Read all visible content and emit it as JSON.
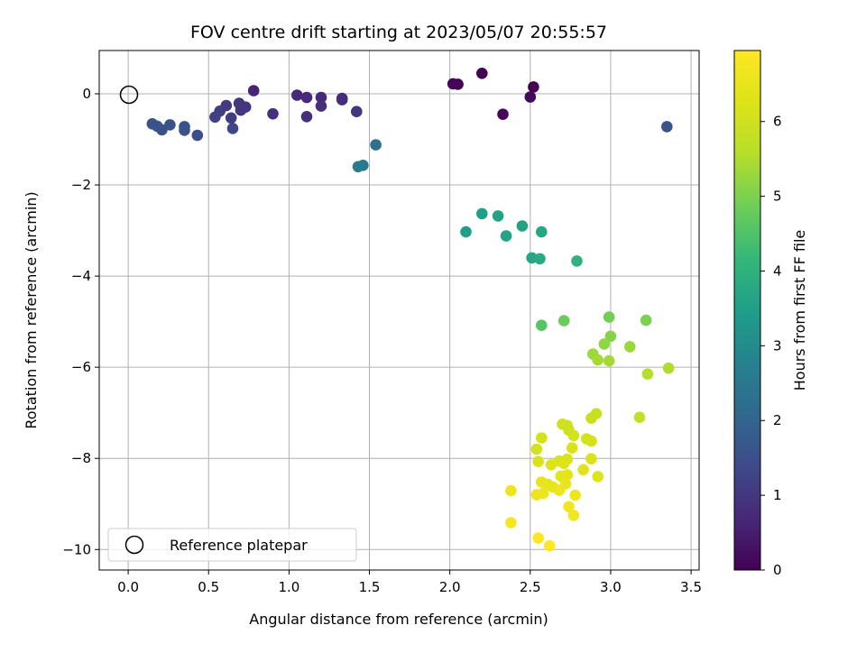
{
  "chart_data": {
    "type": "scatter",
    "title": "FOV centre drift starting at 2023/05/07 20:55:57",
    "xlabel": "Angular distance from reference (arcmin)",
    "ylabel": "Rotation from reference (arcmin)",
    "xlim": [
      -0.18,
      3.55
    ],
    "ylim": [
      -10.45,
      0.95
    ],
    "x_ticks": [
      "0.0",
      "0.5",
      "1.0",
      "1.5",
      "2.0",
      "2.5",
      "3.0",
      "3.5"
    ],
    "x_tick_values": [
      0,
      0.5,
      1.0,
      1.5,
      2.0,
      2.5,
      3.0,
      3.5
    ],
    "y_ticks": [
      "0",
      "−2",
      "−4",
      "−6",
      "−8",
      "−10"
    ],
    "y_tick_values": [
      0,
      -2,
      -4,
      -6,
      -8,
      -10
    ],
    "grid": true,
    "legend": {
      "placement": "lower-left",
      "label": "Reference platepar",
      "marker": "open-circle"
    },
    "reference_point": {
      "x": 0.0,
      "y": 0.0
    },
    "colormap": "viridis",
    "colorbar": {
      "label": "Hours from first FF file",
      "range": [
        0,
        6.95
      ],
      "ticks": [
        "0",
        "1",
        "2",
        "3",
        "4",
        "5",
        "6"
      ],
      "tick_values": [
        0,
        1,
        2,
        3,
        4,
        5,
        6
      ]
    },
    "points": [
      {
        "x": 2.02,
        "y": 0.22,
        "c": 0.05
      },
      {
        "x": 2.05,
        "y": 0.21,
        "c": 0.08
      },
      {
        "x": 2.2,
        "y": 0.45,
        "c": 0.02
      },
      {
        "x": 2.52,
        "y": 0.15,
        "c": 0.0
      },
      {
        "x": 2.5,
        "y": -0.07,
        "c": 0.15
      },
      {
        "x": 2.33,
        "y": -0.45,
        "c": 0.1
      },
      {
        "x": 0.78,
        "y": 0.07,
        "c": 0.6
      },
      {
        "x": 1.05,
        "y": -0.03,
        "c": 0.7
      },
      {
        "x": 1.11,
        "y": -0.08,
        "c": 0.75
      },
      {
        "x": 1.2,
        "y": -0.08,
        "c": 0.7
      },
      {
        "x": 1.33,
        "y": -0.1,
        "c": 0.8
      },
      {
        "x": 1.33,
        "y": -0.13,
        "c": 0.8
      },
      {
        "x": 1.2,
        "y": -0.27,
        "c": 0.85
      },
      {
        "x": 1.11,
        "y": -0.5,
        "c": 0.85
      },
      {
        "x": 0.9,
        "y": -0.44,
        "c": 0.9
      },
      {
        "x": 1.42,
        "y": -0.39,
        "c": 1.0
      },
      {
        "x": 0.69,
        "y": -0.21,
        "c": 1.0
      },
      {
        "x": 0.73,
        "y": -0.29,
        "c": 0.95
      },
      {
        "x": 0.7,
        "y": -0.36,
        "c": 1.0
      },
      {
        "x": 0.61,
        "y": -0.26,
        "c": 1.05
      },
      {
        "x": 0.64,
        "y": -0.53,
        "c": 1.1
      },
      {
        "x": 0.57,
        "y": -0.38,
        "c": 1.15
      },
      {
        "x": 0.54,
        "y": -0.51,
        "c": 1.2
      },
      {
        "x": 0.65,
        "y": -0.76,
        "c": 1.3
      },
      {
        "x": 0.43,
        "y": -0.91,
        "c": 1.5
      },
      {
        "x": 0.35,
        "y": -0.72,
        "c": 1.55
      },
      {
        "x": 0.35,
        "y": -0.8,
        "c": 1.6
      },
      {
        "x": 0.26,
        "y": -0.68,
        "c": 1.6
      },
      {
        "x": 0.21,
        "y": -0.79,
        "c": 1.55
      },
      {
        "x": 0.15,
        "y": -0.66,
        "c": 1.6
      },
      {
        "x": 0.18,
        "y": -0.71,
        "c": 1.6
      },
      {
        "x": 3.35,
        "y": -0.72,
        "c": 1.6
      },
      {
        "x": 1.54,
        "y": -1.12,
        "c": 2.3
      },
      {
        "x": 1.46,
        "y": -1.57,
        "c": 2.5
      },
      {
        "x": 1.43,
        "y": -1.6,
        "c": 2.6
      },
      {
        "x": 2.1,
        "y": -3.03,
        "c": 3.5
      },
      {
        "x": 2.2,
        "y": -2.63,
        "c": 3.5
      },
      {
        "x": 2.3,
        "y": -2.68,
        "c": 3.6
      },
      {
        "x": 2.35,
        "y": -3.12,
        "c": 3.6
      },
      {
        "x": 2.45,
        "y": -2.9,
        "c": 3.6
      },
      {
        "x": 2.57,
        "y": -3.03,
        "c": 3.7
      },
      {
        "x": 2.51,
        "y": -3.6,
        "c": 3.7
      },
      {
        "x": 2.56,
        "y": -3.62,
        "c": 3.8
      },
      {
        "x": 2.79,
        "y": -3.67,
        "c": 4.0
      },
      {
        "x": 2.57,
        "y": -5.08,
        "c": 4.6
      },
      {
        "x": 2.71,
        "y": -4.98,
        "c": 4.8
      },
      {
        "x": 2.99,
        "y": -4.9,
        "c": 4.9
      },
      {
        "x": 3.22,
        "y": -4.97,
        "c": 5.0
      },
      {
        "x": 3.0,
        "y": -5.32,
        "c": 5.1
      },
      {
        "x": 2.96,
        "y": -5.49,
        "c": 5.2
      },
      {
        "x": 3.12,
        "y": -5.55,
        "c": 5.3
      },
      {
        "x": 2.89,
        "y": -5.71,
        "c": 5.3
      },
      {
        "x": 2.92,
        "y": -5.84,
        "c": 5.4
      },
      {
        "x": 2.99,
        "y": -5.86,
        "c": 5.4
      },
      {
        "x": 3.36,
        "y": -6.02,
        "c": 5.5
      },
      {
        "x": 3.23,
        "y": -6.15,
        "c": 5.6
      },
      {
        "x": 3.18,
        "y": -7.1,
        "c": 5.8
      },
      {
        "x": 2.91,
        "y": -7.02,
        "c": 5.9
      },
      {
        "x": 2.88,
        "y": -7.12,
        "c": 5.9
      },
      {
        "x": 2.7,
        "y": -7.25,
        "c": 6.0
      },
      {
        "x": 2.73,
        "y": -7.28,
        "c": 6.0
      },
      {
        "x": 2.74,
        "y": -7.38,
        "c": 6.0
      },
      {
        "x": 2.77,
        "y": -7.5,
        "c": 6.1
      },
      {
        "x": 2.57,
        "y": -7.55,
        "c": 6.1
      },
      {
        "x": 2.85,
        "y": -7.57,
        "c": 6.1
      },
      {
        "x": 2.88,
        "y": -7.62,
        "c": 6.1
      },
      {
        "x": 2.76,
        "y": -7.77,
        "c": 6.2
      },
      {
        "x": 2.54,
        "y": -7.8,
        "c": 6.1
      },
      {
        "x": 2.88,
        "y": -8.01,
        "c": 6.2
      },
      {
        "x": 2.73,
        "y": -8.02,
        "c": 6.2
      },
      {
        "x": 2.55,
        "y": -8.07,
        "c": 6.2
      },
      {
        "x": 2.68,
        "y": -8.06,
        "c": 6.2
      },
      {
        "x": 2.71,
        "y": -8.11,
        "c": 6.3
      },
      {
        "x": 2.63,
        "y": -8.14,
        "c": 6.3
      },
      {
        "x": 2.83,
        "y": -8.25,
        "c": 6.3
      },
      {
        "x": 2.92,
        "y": -8.4,
        "c": 6.3
      },
      {
        "x": 2.69,
        "y": -8.39,
        "c": 6.4
      },
      {
        "x": 2.73,
        "y": -8.36,
        "c": 6.4
      },
      {
        "x": 2.57,
        "y": -8.52,
        "c": 6.5
      },
      {
        "x": 2.61,
        "y": -8.57,
        "c": 6.5
      },
      {
        "x": 2.72,
        "y": -8.56,
        "c": 6.5
      },
      {
        "x": 2.64,
        "y": -8.63,
        "c": 6.5
      },
      {
        "x": 2.68,
        "y": -8.7,
        "c": 6.6
      },
      {
        "x": 2.38,
        "y": -8.71,
        "c": 6.6
      },
      {
        "x": 2.58,
        "y": -8.77,
        "c": 6.6
      },
      {
        "x": 2.54,
        "y": -8.8,
        "c": 6.6
      },
      {
        "x": 2.78,
        "y": -8.81,
        "c": 6.6
      },
      {
        "x": 2.74,
        "y": -9.06,
        "c": 6.7
      },
      {
        "x": 2.77,
        "y": -9.25,
        "c": 6.7
      },
      {
        "x": 2.38,
        "y": -9.41,
        "c": 6.8
      },
      {
        "x": 2.55,
        "y": -9.75,
        "c": 6.9
      },
      {
        "x": 2.62,
        "y": -9.92,
        "c": 6.9
      }
    ]
  }
}
